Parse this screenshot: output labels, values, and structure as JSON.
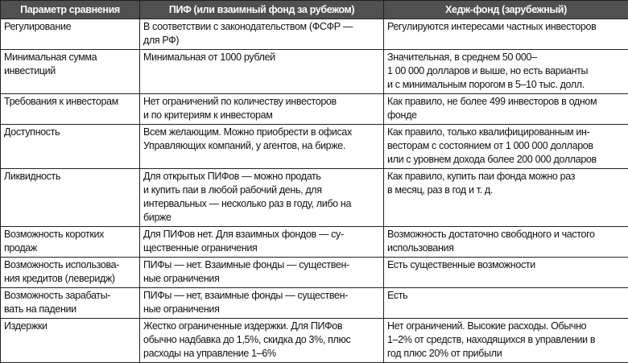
{
  "header": [
    "Параметр сравнения",
    "ПИФ (или взаимный фонд за рубежом)",
    "Хедж-фонд (зарубежный)"
  ],
  "rows": [
    [
      "Регулирование",
      "В соответствии с законодательством (ФСФР —\nдля РФ)",
      "Регулируются интересами частных инвесторов"
    ],
    [
      "Минимальная сумма\nинвестиций",
      "Минимальная от 1000 рублей",
      "Значительная, в среднем 50 000–\n1 00 000 долларов и выше, но есть варианты\nи с минимальным порогом в 5–10 тыс. долл."
    ],
    [
      "Требования к инвесторам",
      "Нет ограничений по количеству инвесторов\nи по критериям к инвесторам",
      "Как правило, не более 499 инвесторов в одном\nфонде"
    ],
    [
      "Доступность",
      "Всем желающим. Можно приобрести в офисах\nУправляющих компаний, у агентов, на бирже.",
      "Как правило, только квалифицированным ин-\nвесторам с состоянием от 1 000 000 долларов\nили с уровнем дохода более 200 000 долларов"
    ],
    [
      "Ликвидность",
      "Для открытых ПИФов — можно продать\nи купить паи в любой рабочий день, для\nинтервальных — несколько раз в году, либо на\nбирже",
      "Как правило, купить паи фонда можно раз\nв месяц, раз в год и т. д."
    ],
    [
      "Возможность коротких\nпродаж",
      "Для ПИФов нет. Для взаимных фондов — су-\nщественные ограничения",
      "Возможность достаточно свободного и частого\nиспользования"
    ],
    [
      "Возможность использова-\nния кредитов (леверидж)",
      "ПИФы — нет. Взаимные фонды — существен-\nные ограничения",
      "Есть существенные возможности"
    ],
    [
      "Возможность зарабаты-\nвать на падении",
      "ПИФы — нет, взаимные фонды — существен-\nные ограничения",
      "Есть"
    ],
    [
      "Издержки",
      "Жестко ограниченные издержки. Для ПИФов\nобычно надбавка до 1,5%, скидка до 3%, плюс\nрасходы на управление 1–6%",
      "Нет ограничений. Высокие расходы. Обычно\n1–2% от средств, находящихся в управлении в\nгод плюс 20% от прибыли"
    ]
  ]
}
